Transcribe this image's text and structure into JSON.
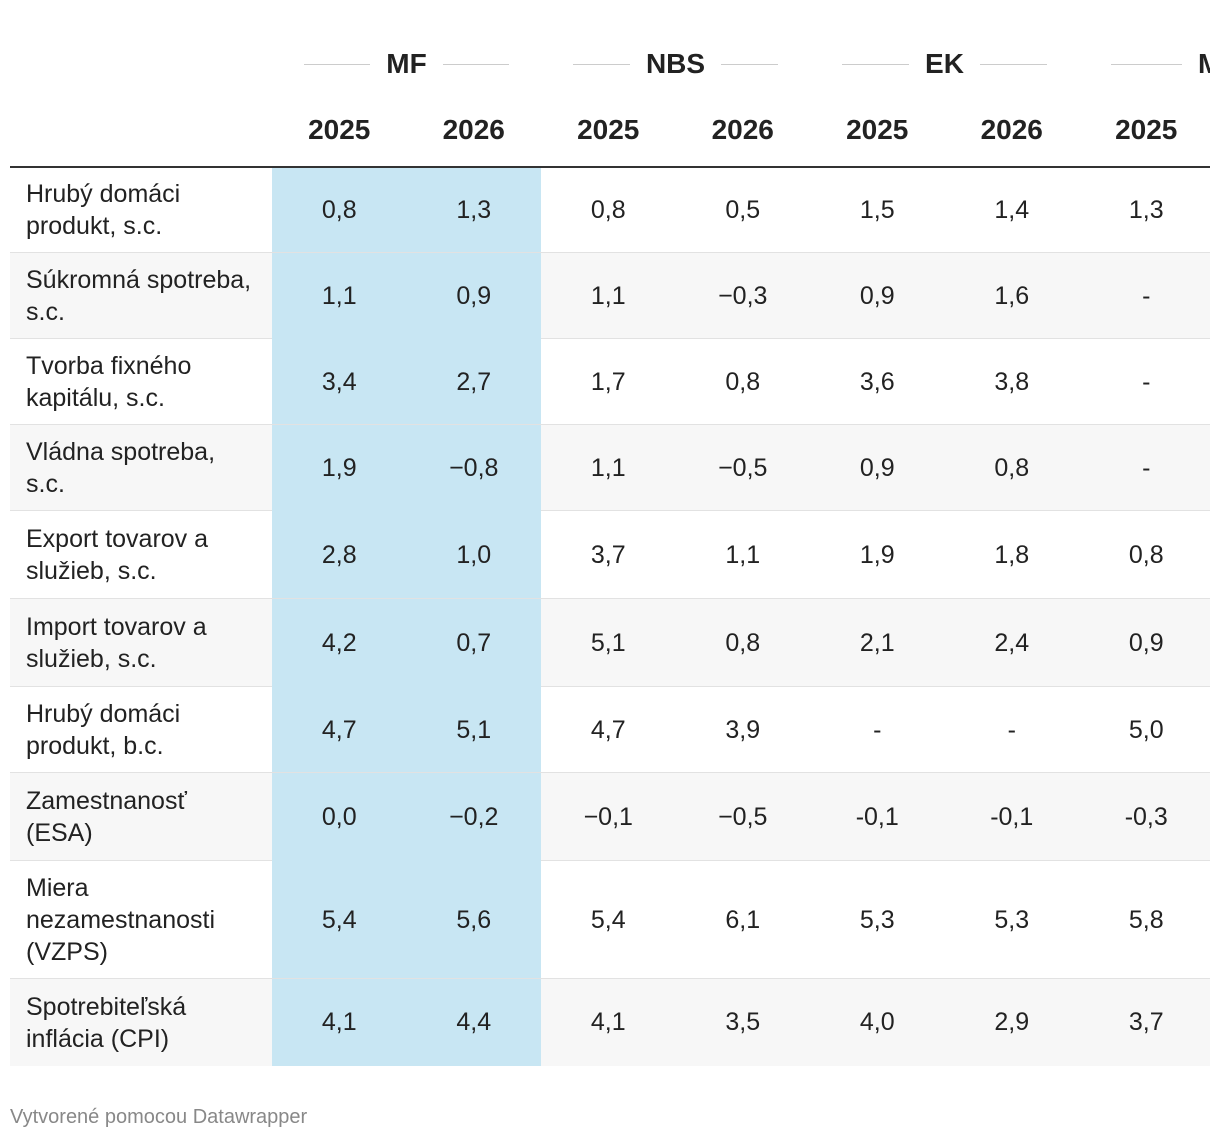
{
  "table": {
    "groups": [
      "MF",
      "NBS",
      "EK",
      "MI"
    ],
    "years": [
      "2025",
      "2026",
      "2025",
      "2026",
      "2025",
      "2026",
      "2025"
    ],
    "rows": [
      [
        "Hrubý domáci produkt, s.c.",
        "0,8",
        "1,3",
        "0,8",
        "0,5",
        "1,5",
        "1,4",
        "1,3"
      ],
      [
        "Súkromná spotreba, s.c.",
        "1,1",
        "0,9",
        "1,1",
        "−0,3",
        "0,9",
        "1,6",
        "-"
      ],
      [
        "Tvorba fixného kapitálu, s.c.",
        "3,4",
        "2,7",
        "1,7",
        "0,8",
        "3,6",
        "3,8",
        "-"
      ],
      [
        "Vládna spotreba, s.c.",
        "1,9",
        "−0,8",
        "1,1",
        "−0,5",
        "0,9",
        "0,8",
        "-"
      ],
      [
        "Export tovarov a služieb, s.c.",
        "2,8",
        "1,0",
        "3,7",
        "1,1",
        "1,9",
        "1,8",
        "0,8"
      ],
      [
        "Import tovarov a služieb, s.c.",
        "4,2",
        "0,7",
        "5,1",
        "0,8",
        "2,1",
        "2,4",
        "0,9"
      ],
      [
        "Hrubý domáci produkt, b.c.",
        "4,7",
        "5,1",
        "4,7",
        "3,9",
        "-",
        "-",
        "5,0"
      ],
      [
        "Zamestnanosť (ESA)",
        "0,0",
        "−0,2",
        "−0,1",
        "−0,5",
        "-0,1",
        "-0,1",
        "-0,3"
      ],
      [
        "Miera nezamestnanosti (VZPS)",
        "5,4",
        "5,6",
        "5,4",
        "6,1",
        "5,3",
        "5,3",
        "5,8"
      ],
      [
        "Spotrebiteľská inflácia (CPI)",
        "4,1",
        "4,4",
        "4,1",
        "3,5",
        "4,0",
        "2,9",
        "3,7"
      ]
    ]
  },
  "footer": "Vytvorené pomocou Datawrapper"
}
